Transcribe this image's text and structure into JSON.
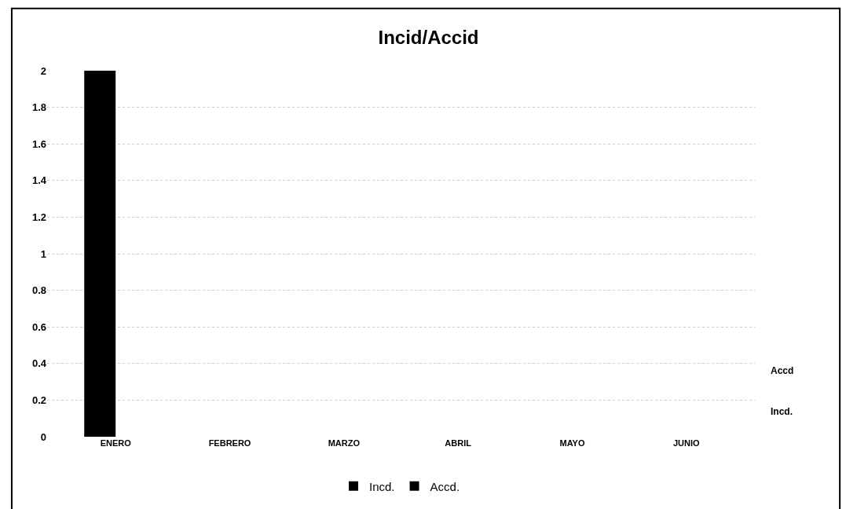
{
  "chart_data": {
    "type": "bar",
    "title": "Incid/Accid",
    "categories": [
      "ENERO",
      "FEBRERO",
      "MARZO",
      "ABRIL",
      "MAYO",
      "JUNIO"
    ],
    "series": [
      {
        "name": "Incd.",
        "color": "#000000",
        "values": [
          2,
          0,
          0,
          0,
          0,
          0
        ]
      },
      {
        "name": "Accd.",
        "color": "#000000",
        "values": [
          0,
          0,
          0,
          0,
          0,
          0
        ]
      }
    ],
    "ylim": [
      0,
      2
    ],
    "yticks": [
      0,
      0.2,
      0.4,
      0.6,
      0.8,
      1,
      1.2,
      1.4,
      1.6,
      1.8,
      2
    ],
    "annotations": [
      "Accd",
      "Incd."
    ],
    "grid": "y",
    "legend": "bottom"
  }
}
